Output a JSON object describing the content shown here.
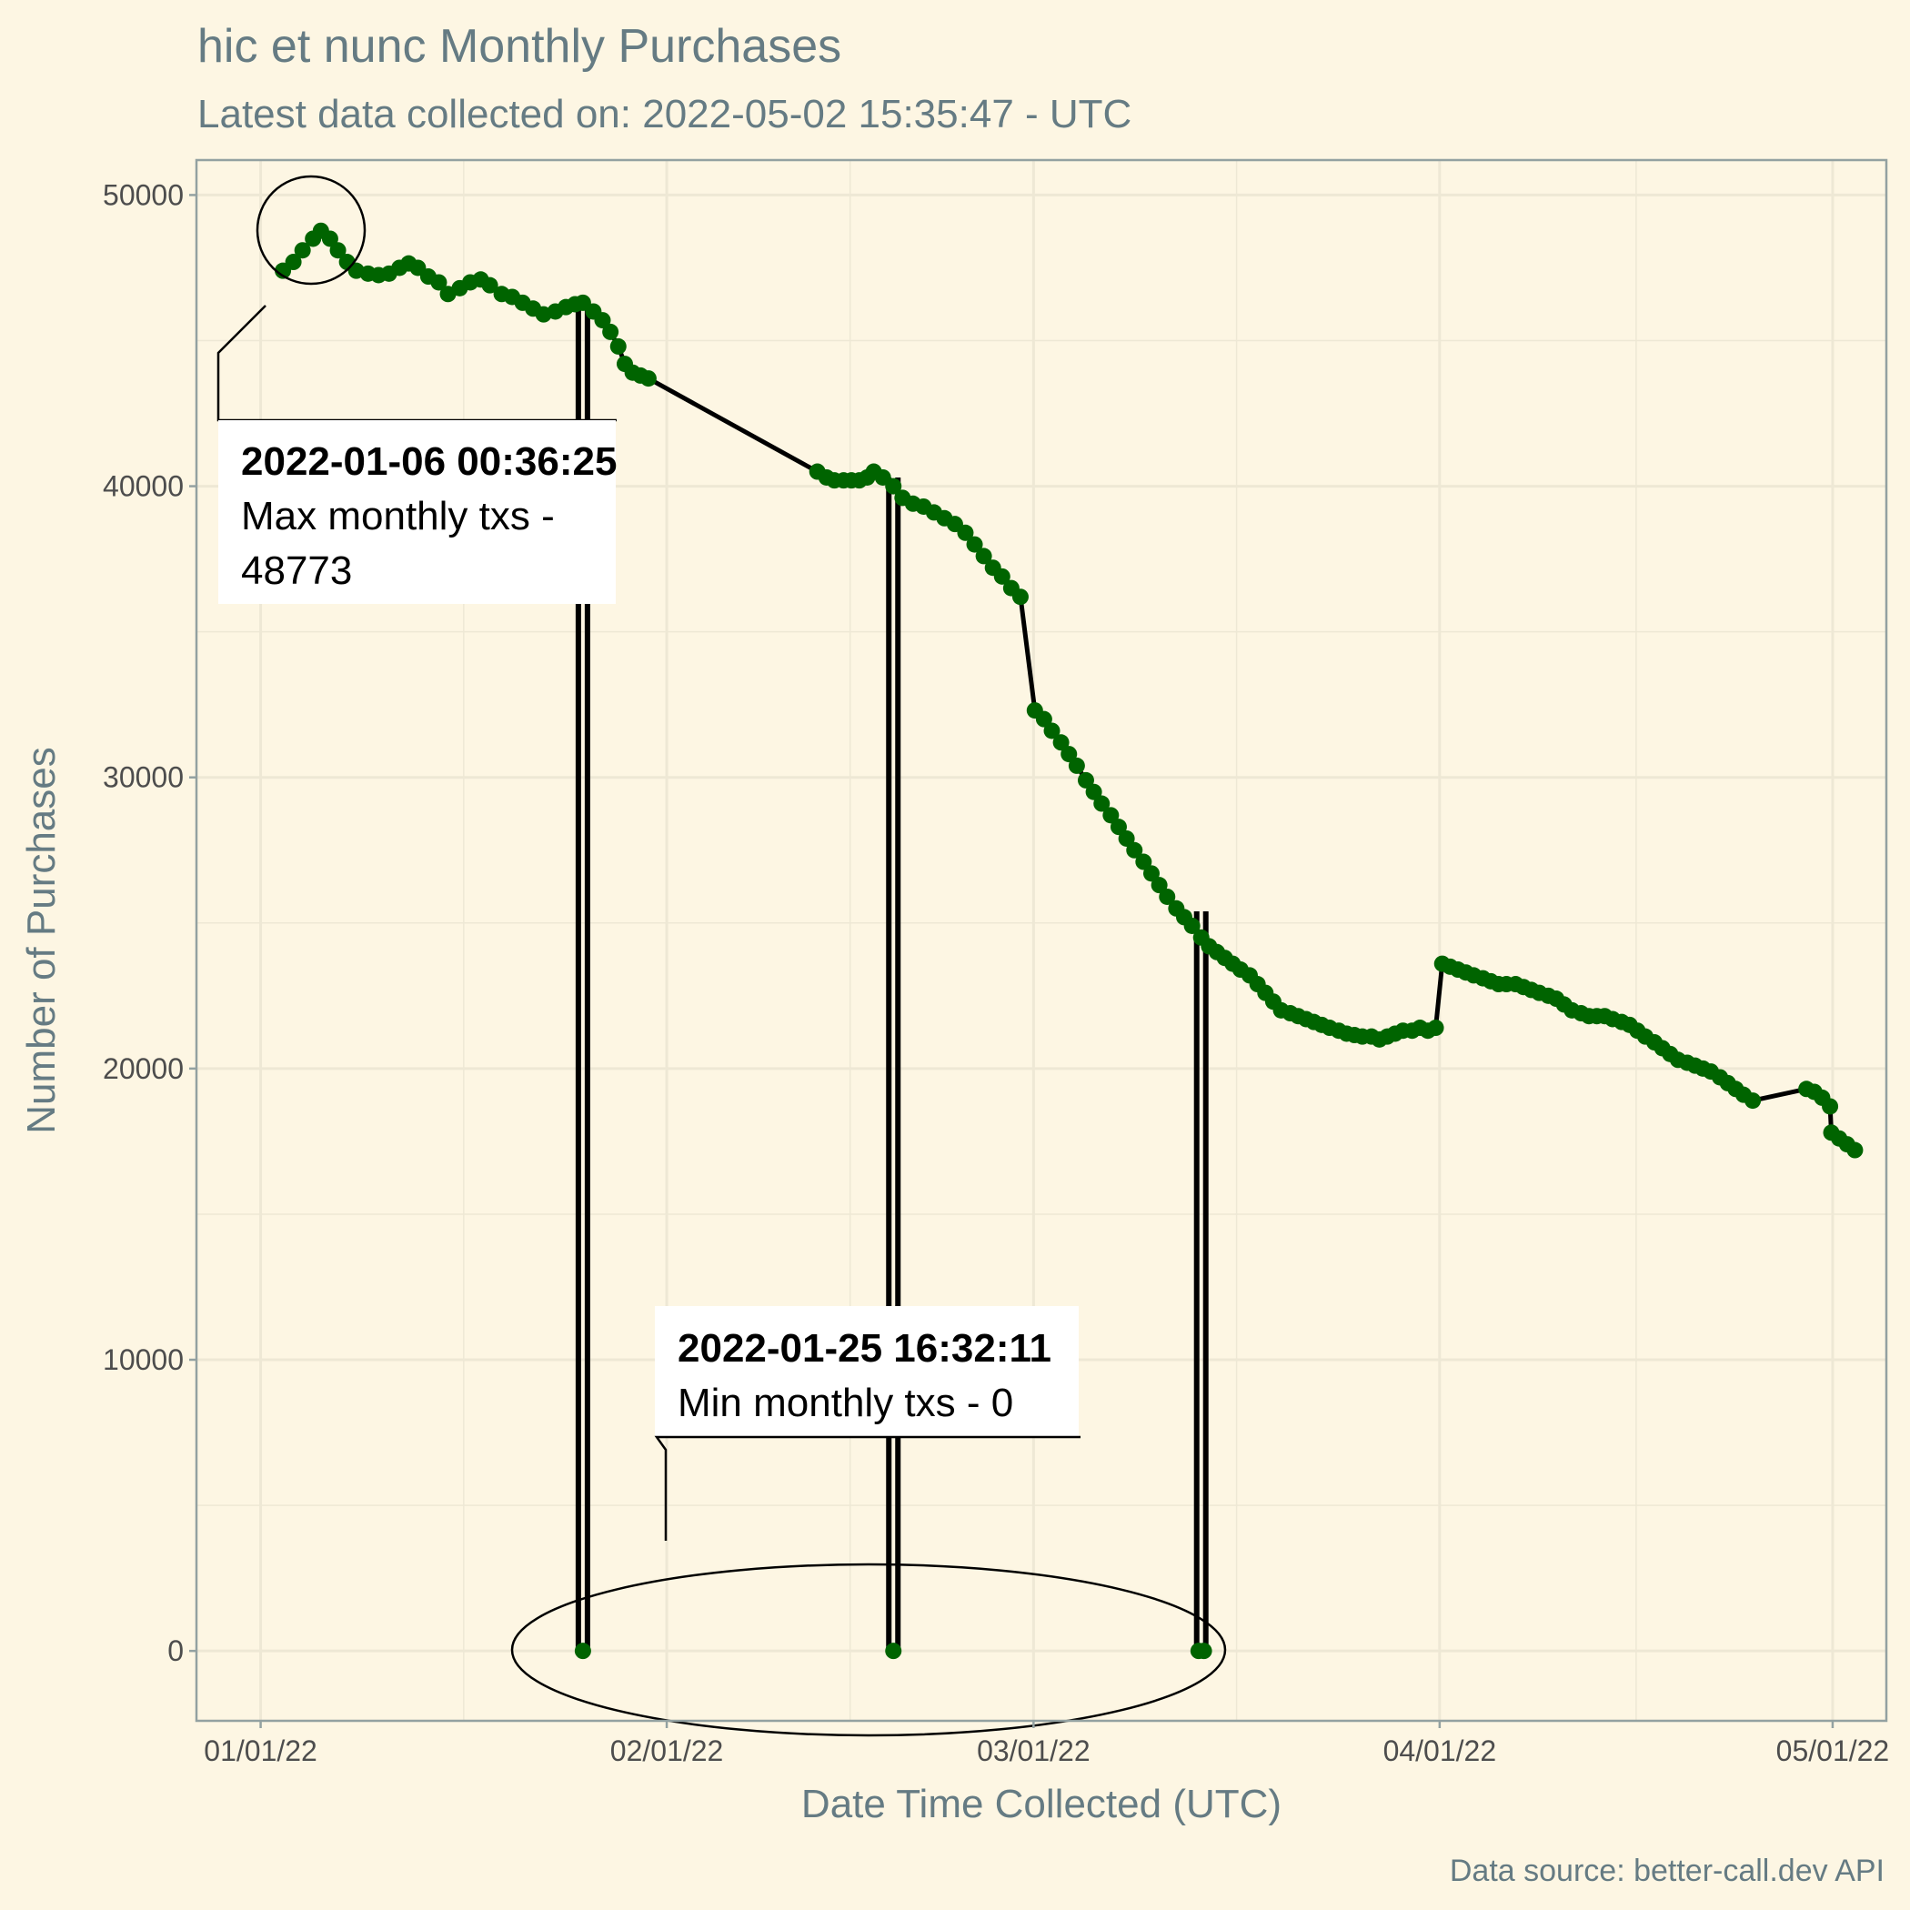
{
  "chart_data": {
    "type": "line",
    "title": "hic et nunc Monthly Purchases",
    "subtitle": "Latest data collected on: 2022-05-02 15:35:47  - UTC",
    "xlabel": "Date Time Collected (UTC)",
    "ylabel": "Number of Purchases",
    "caption": "Data source: better-call.dev API",
    "x_ticks": [
      {
        "day": 0,
        "label": "01/01/22"
      },
      {
        "day": 31,
        "label": "02/01/22"
      },
      {
        "day": 59,
        "label": "03/01/22"
      },
      {
        "day": 90,
        "label": "04/01/22"
      },
      {
        "day": 120,
        "label": "05/01/22"
      }
    ],
    "y_ticks": [
      0,
      10000,
      20000,
      30000,
      40000,
      50000
    ],
    "xlim": [
      "2021-12-27",
      "2022-05-05"
    ],
    "ylim": [
      -2400,
      51200
    ],
    "grid": true,
    "line_color": "#000000",
    "point_color": "#006400",
    "points": [
      [
        1.7,
        47400
      ],
      [
        2.5,
        47700
      ],
      [
        3.2,
        48100
      ],
      [
        4.0,
        48500
      ],
      [
        4.6,
        48773
      ],
      [
        5.3,
        48500
      ],
      [
        5.9,
        48100
      ],
      [
        6.6,
        47700
      ],
      [
        7.3,
        47400
      ],
      [
        8.2,
        47300
      ],
      [
        9.0,
        47250
      ],
      [
        9.8,
        47300
      ],
      [
        10.6,
        47500
      ],
      [
        11.3,
        47650
      ],
      [
        12.0,
        47500
      ],
      [
        12.8,
        47200
      ],
      [
        13.6,
        47000
      ],
      [
        14.3,
        46600
      ],
      [
        15.2,
        46800
      ],
      [
        16.0,
        47000
      ],
      [
        16.8,
        47100
      ],
      [
        17.5,
        46900
      ],
      [
        18.4,
        46600
      ],
      [
        19.2,
        46500
      ],
      [
        20.0,
        46300
      ],
      [
        20.8,
        46100
      ],
      [
        21.6,
        45900
      ],
      [
        22.5,
        46000
      ],
      [
        23.3,
        46150
      ],
      [
        24.0,
        46250
      ],
      [
        24.6,
        46300
      ],
      [
        25.4,
        46000
      ],
      [
        26.1,
        45700
      ],
      [
        26.7,
        45300
      ],
      [
        27.3,
        44800
      ],
      [
        27.8,
        44200
      ],
      [
        28.4,
        43900
      ],
      [
        29.0,
        43800
      ],
      [
        29.6,
        43700
      ],
      [
        42.5,
        40500
      ],
      [
        43.2,
        40300
      ],
      [
        43.8,
        40200
      ],
      [
        44.5,
        40200
      ],
      [
        45.1,
        40200
      ],
      [
        45.7,
        40200
      ],
      [
        46.3,
        40300
      ],
      [
        46.8,
        40500
      ],
      [
        47.5,
        40300
      ],
      [
        48.3,
        40000
      ],
      [
        49.0,
        39600
      ],
      [
        49.8,
        39400
      ],
      [
        50.6,
        39300
      ],
      [
        51.4,
        39100
      ],
      [
        52.2,
        38900
      ],
      [
        53.0,
        38700
      ],
      [
        53.8,
        38400
      ],
      [
        54.5,
        38000
      ],
      [
        55.2,
        37600
      ],
      [
        55.9,
        37200
      ],
      [
        56.6,
        36900
      ],
      [
        57.3,
        36500
      ],
      [
        58.0,
        36200
      ],
      [
        59.1,
        32300
      ],
      [
        59.8,
        32000
      ],
      [
        60.4,
        31600
      ],
      [
        61.1,
        31200
      ],
      [
        61.7,
        30800
      ],
      [
        62.3,
        30400
      ],
      [
        63.0,
        29900
      ],
      [
        63.6,
        29500
      ],
      [
        64.2,
        29100
      ],
      [
        64.9,
        28700
      ],
      [
        65.5,
        28300
      ],
      [
        66.1,
        27900
      ],
      [
        66.7,
        27500
      ],
      [
        67.4,
        27100
      ],
      [
        68.0,
        26700
      ],
      [
        68.6,
        26300
      ],
      [
        69.2,
        25900
      ],
      [
        69.9,
        25500
      ],
      [
        70.5,
        25200
      ],
      [
        71.1,
        24900
      ],
      [
        71.8,
        24500
      ],
      [
        72.4,
        24200
      ],
      [
        73.0,
        24000
      ],
      [
        73.6,
        23800
      ],
      [
        74.2,
        23600
      ],
      [
        74.8,
        23400
      ],
      [
        75.5,
        23200
      ],
      [
        76.1,
        22900
      ],
      [
        76.7,
        22600
      ],
      [
        77.3,
        22300
      ],
      [
        77.9,
        22000
      ],
      [
        78.6,
        21900
      ],
      [
        79.2,
        21800
      ],
      [
        79.8,
        21700
      ],
      [
        80.4,
        21600
      ],
      [
        81.0,
        21500
      ],
      [
        81.6,
        21400
      ],
      [
        82.3,
        21300
      ],
      [
        82.9,
        21200
      ],
      [
        83.5,
        21150
      ],
      [
        84.1,
        21100
      ],
      [
        84.8,
        21100
      ],
      [
        85.4,
        21000
      ],
      [
        86.0,
        21100
      ],
      [
        86.6,
        21200
      ],
      [
        87.2,
        21300
      ],
      [
        87.9,
        21300
      ],
      [
        88.5,
        21400
      ],
      [
        89.1,
        21300
      ],
      [
        89.7,
        21400
      ],
      [
        90.2,
        23600
      ],
      [
        90.8,
        23500
      ],
      [
        91.4,
        23400
      ],
      [
        92.0,
        23300
      ],
      [
        92.6,
        23200
      ],
      [
        93.3,
        23100
      ],
      [
        93.9,
        23000
      ],
      [
        94.5,
        22900
      ],
      [
        95.1,
        22900
      ],
      [
        95.8,
        22900
      ],
      [
        96.4,
        22800
      ],
      [
        97.0,
        22700
      ],
      [
        97.6,
        22600
      ],
      [
        98.3,
        22500
      ],
      [
        98.9,
        22400
      ],
      [
        99.5,
        22200
      ],
      [
        100.1,
        22000
      ],
      [
        100.8,
        21900
      ],
      [
        101.4,
        21800
      ],
      [
        102.0,
        21800
      ],
      [
        102.6,
        21800
      ],
      [
        103.2,
        21700
      ],
      [
        103.9,
        21600
      ],
      [
        104.5,
        21500
      ],
      [
        105.1,
        21300
      ],
      [
        105.7,
        21100
      ],
      [
        106.4,
        20900
      ],
      [
        107.0,
        20700
      ],
      [
        107.6,
        20500
      ],
      [
        108.2,
        20300
      ],
      [
        108.9,
        20200
      ],
      [
        109.5,
        20100
      ],
      [
        110.1,
        20000
      ],
      [
        110.7,
        19900
      ],
      [
        111.4,
        19700
      ],
      [
        112.0,
        19500
      ],
      [
        112.6,
        19300
      ],
      [
        113.2,
        19100
      ],
      [
        113.9,
        18900
      ],
      [
        118.0,
        19300
      ],
      [
        118.6,
        19200
      ],
      [
        119.2,
        19000
      ],
      [
        119.8,
        18700
      ],
      [
        119.9,
        17800
      ],
      [
        120.5,
        17600
      ],
      [
        121.1,
        17400
      ],
      [
        121.7,
        17200
      ]
    ],
    "spikes": [
      {
        "day": 24.6,
        "top": 46300,
        "bottom_points": [
          24.6
        ]
      },
      {
        "day": 48.3,
        "top": 40300,
        "bottom_points": [
          48.3
        ]
      },
      {
        "day": 71.8,
        "top": 25400,
        "bottom_points": [
          71.6,
          72.0
        ]
      }
    ],
    "annotations": [
      {
        "title": "2022-01-06 00:36:25",
        "text_lines": [
          "Max monthly txs -",
          "48773"
        ]
      },
      {
        "title": "2022-01-25 16:32:11",
        "text_lines": [
          "Min monthly txs - 0"
        ]
      }
    ]
  }
}
